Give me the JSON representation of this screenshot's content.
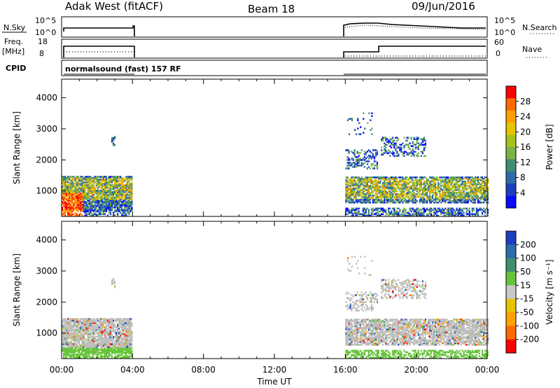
{
  "header": {
    "title": "Adak West (fitACF)",
    "beam": "Beam 18",
    "date": "09/Jun/2016"
  },
  "strips": {
    "nsky_label": "N.Sky",
    "nsky_ticks": [
      "10^5",
      "10^0"
    ],
    "nsearch_label": "N.Search",
    "nsearch_ticks": [
      "10^5",
      "10^0"
    ],
    "freq_label": "Freq.",
    "freq_unit": "[MHz]",
    "freq_ticks": [
      "18",
      "8"
    ],
    "nave_label": "Nave",
    "nave_ticks": [
      "60",
      "0"
    ],
    "cpid_label": "CPID",
    "cpid_value": "normalsound (fast) 157 RF"
  },
  "chart_data": [
    {
      "type": "heatmap",
      "panel": "power",
      "ylabel": "Slant Range [km]",
      "xlabel": "",
      "ylim": [
        180,
        4600
      ],
      "yticks": [
        "4000",
        "3000",
        "2000",
        "1000"
      ],
      "colorbar": {
        "label": "Power [dB]",
        "ticks": [
          "28",
          "24",
          "20",
          "16",
          "12",
          "8",
          "4"
        ],
        "colors": [
          "#ff0000",
          "#ff6a00",
          "#ff9f00",
          "#e6c400",
          "#a8c21a",
          "#7bb24a",
          "#3f8f6f",
          "#2c6ca8",
          "#1d3fbf",
          "#0a0aff"
        ]
      },
      "scatter_regions_note": "Backscatter present approx 00:00–04:00 and 16:00–24:00 UT, mainly 500–1500 km"
    },
    {
      "type": "heatmap",
      "panel": "velocity",
      "ylabel": "Slant Range [km]",
      "xlabel": "Time UT",
      "ylim": [
        180,
        4600
      ],
      "yticks": [
        "4000",
        "3000",
        "2000",
        "1000"
      ],
      "xticks": [
        "00:00",
        "04:00",
        "08:00",
        "12:00",
        "16:00",
        "20:00",
        "00:00"
      ],
      "colorbar": {
        "label": "Velocity [m s⁻¹]",
        "ticks": [
          "200",
          "100",
          "50",
          "15",
          "-15",
          "-50",
          "-100",
          "-200"
        ],
        "colors": [
          "#1d3fbf",
          "#2c6ca8",
          "#3f8f6f",
          "#66c43a",
          "#c8c8c8",
          "#e6c400",
          "#ff9f00",
          "#ff6a00",
          "#ff0000"
        ]
      }
    }
  ],
  "colors": {
    "frame": "#000000",
    "ground_scatter": "#bdbdbd"
  }
}
